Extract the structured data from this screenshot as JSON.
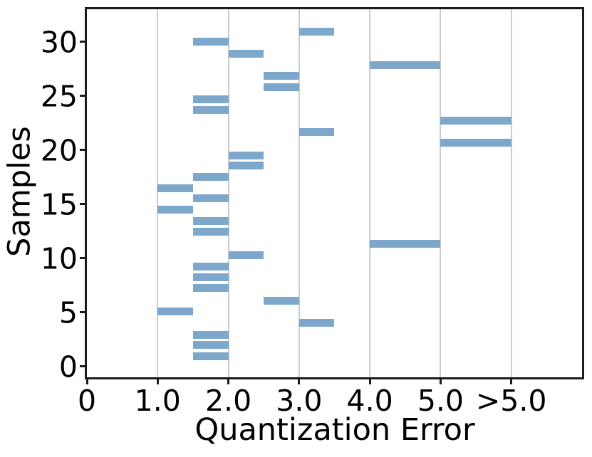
{
  "figure": {
    "background_color": "#ffffff",
    "spine_color": "#1b1b1b",
    "text_color": "#000000"
  },
  "chart_data": {
    "type": "bar",
    "orientation": "horizontal",
    "title": "",
    "xlabel": "Quantization Error",
    "ylabel": "Samples",
    "xlim": [
      0,
      7
    ],
    "ylim": [
      -1,
      33
    ],
    "grid": "vertical-only",
    "legend": "none",
    "bar_color": "#7ea8cb",
    "grid_color": "#cbcbcb",
    "bar_height_units": 0.72,
    "xticks": [
      {
        "v": 0,
        "label": "0"
      },
      {
        "v": 1,
        "label": "1.0"
      },
      {
        "v": 2,
        "label": "2.0"
      },
      {
        "v": 3,
        "label": "3.0"
      },
      {
        "v": 4,
        "label": "4.0"
      },
      {
        "v": 5,
        "label": "5.0"
      },
      {
        "v": 6,
        "label": ">5.0"
      }
    ],
    "yticks": [
      {
        "v": 0,
        "label": "0"
      },
      {
        "v": 5,
        "label": "5"
      },
      {
        "v": 10,
        "label": "10"
      },
      {
        "v": 15,
        "label": "15"
      },
      {
        "v": 20,
        "label": "20"
      },
      {
        "v": 25,
        "label": "25"
      },
      {
        "v": 30,
        "label": "30"
      }
    ],
    "gridlines_x": [
      1,
      2,
      3,
      4,
      5,
      6
    ],
    "note": "Each bar spans an error interval on the x axis; x value 6 renders as the >5.0 bin. y is the bar's vertical center in Samples-axis units.",
    "bars": [
      {
        "sample": 1,
        "y": 0.93,
        "x_start": 1.5,
        "x_end": 2.0
      },
      {
        "sample": 2,
        "y": 1.97,
        "x_start": 1.5,
        "x_end": 2.0
      },
      {
        "sample": 3,
        "y": 2.9,
        "x_start": 1.5,
        "x_end": 2.0
      },
      {
        "sample": 4,
        "y": 4.05,
        "x_start": 3.0,
        "x_end": 3.5
      },
      {
        "sample": 5,
        "y": 5.09,
        "x_start": 1.0,
        "x_end": 1.5
      },
      {
        "sample": 6,
        "y": 6.1,
        "x_start": 2.5,
        "x_end": 3.0
      },
      {
        "sample": 7,
        "y": 7.25,
        "x_start": 1.5,
        "x_end": 2.0
      },
      {
        "sample": 8,
        "y": 8.26,
        "x_start": 1.5,
        "x_end": 2.0
      },
      {
        "sample": 9,
        "y": 9.23,
        "x_start": 1.5,
        "x_end": 2.0
      },
      {
        "sample": 10,
        "y": 10.31,
        "x_start": 2.0,
        "x_end": 2.5
      },
      {
        "sample": 11,
        "y": 11.34,
        "x_start": 4.0,
        "x_end": 5.0
      },
      {
        "sample": 12,
        "y": 12.43,
        "x_start": 1.5,
        "x_end": 2.0
      },
      {
        "sample": 13,
        "y": 13.46,
        "x_start": 1.5,
        "x_end": 2.0
      },
      {
        "sample": 14,
        "y": 14.47,
        "x_start": 1.0,
        "x_end": 1.5
      },
      {
        "sample": 15,
        "y": 15.51,
        "x_start": 1.5,
        "x_end": 2.0
      },
      {
        "sample": 16,
        "y": 16.45,
        "x_start": 1.0,
        "x_end": 1.5
      },
      {
        "sample": 17,
        "y": 17.5,
        "x_start": 1.5,
        "x_end": 2.0
      },
      {
        "sample": 18,
        "y": 18.54,
        "x_start": 2.0,
        "x_end": 2.5
      },
      {
        "sample": 19,
        "y": 19.51,
        "x_start": 2.0,
        "x_end": 2.5
      },
      {
        "sample": 20,
        "y": 20.66,
        "x_start": 5.0,
        "x_end": 6.0
      },
      {
        "sample": 21,
        "y": 21.66,
        "x_start": 3.0,
        "x_end": 3.5
      },
      {
        "sample": 22,
        "y": 22.69,
        "x_start": 5.0,
        "x_end": 6.0
      },
      {
        "sample": 23,
        "y": 23.67,
        "x_start": 1.5,
        "x_end": 2.0
      },
      {
        "sample": 24,
        "y": 24.71,
        "x_start": 1.5,
        "x_end": 2.0
      },
      {
        "sample": 25,
        "y": 25.78,
        "x_start": 2.5,
        "x_end": 3.0
      },
      {
        "sample": 26,
        "y": 26.82,
        "x_start": 2.5,
        "x_end": 3.0
      },
      {
        "sample": 27,
        "y": 27.87,
        "x_start": 4.0,
        "x_end": 5.0
      },
      {
        "sample": 28,
        "y": 28.92,
        "x_start": 2.0,
        "x_end": 2.5
      },
      {
        "sample": 29,
        "y": 29.98,
        "x_start": 1.5,
        "x_end": 2.0
      },
      {
        "sample": 30,
        "y": 30.95,
        "x_start": 3.0,
        "x_end": 3.5
      }
    ]
  }
}
